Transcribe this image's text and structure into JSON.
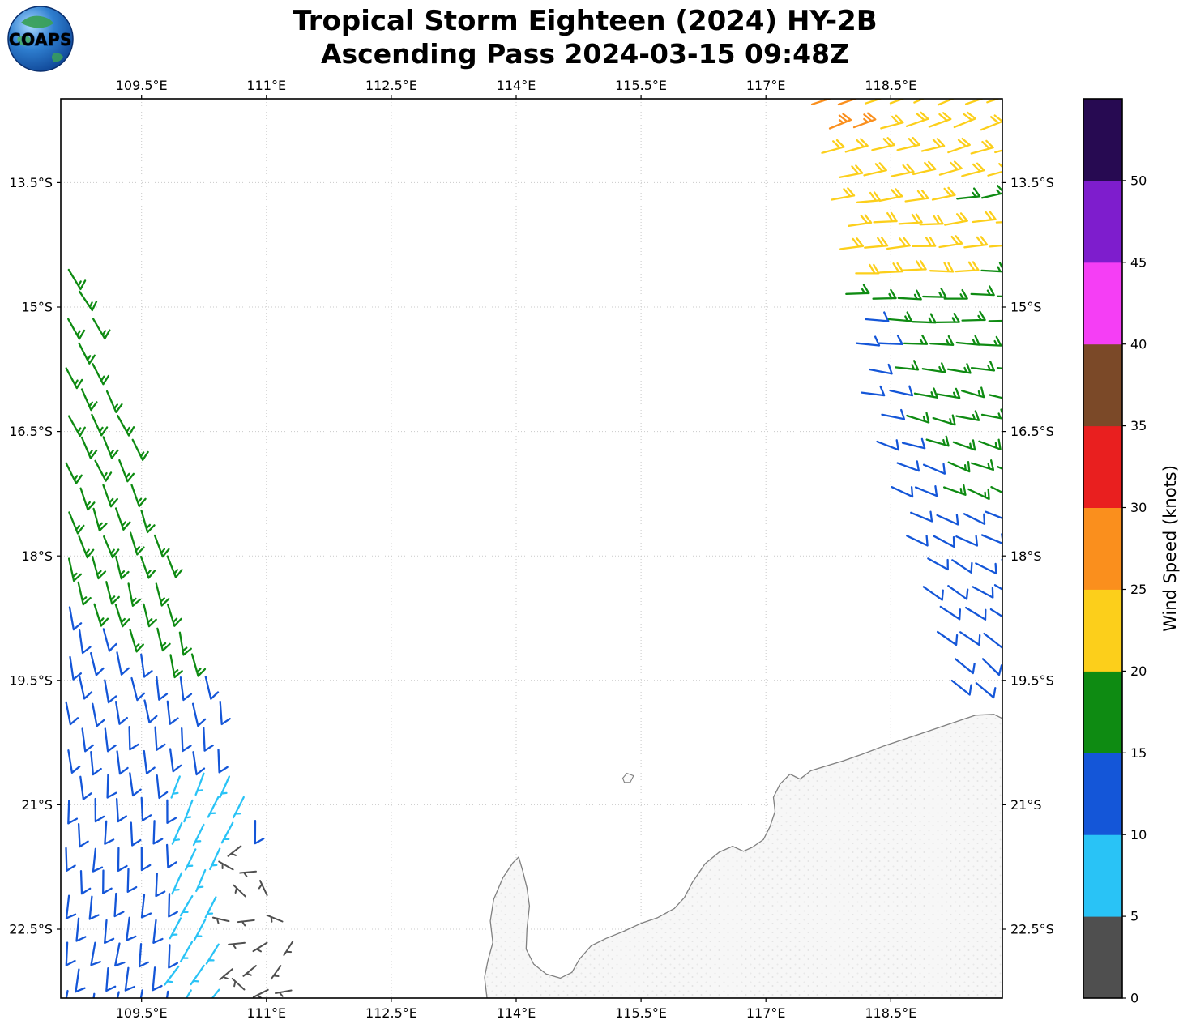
{
  "header": {
    "title_line1": "Tropical Storm Eighteen (2024) HY-2B",
    "title_line2": "Ascending Pass 2024-03-15 09:48Z",
    "logo_text": "COAPS"
  },
  "axes": {
    "lon_min": 108.53,
    "lon_max": 119.84,
    "lat_min": 12.49,
    "lat_max": 23.33,
    "x_ticks": [
      {
        "lon": 109.5,
        "label": "109.5°E"
      },
      {
        "lon": 111.0,
        "label": "111°E"
      },
      {
        "lon": 112.5,
        "label": "112.5°E"
      },
      {
        "lon": 114.0,
        "label": "114°E"
      },
      {
        "lon": 115.5,
        "label": "115.5°E"
      },
      {
        "lon": 117.0,
        "label": "117°E"
      },
      {
        "lon": 118.5,
        "label": "118.5°E"
      }
    ],
    "y_ticks": [
      {
        "lat": 13.5,
        "label": "13.5°S"
      },
      {
        "lat": 15.0,
        "label": "15°S"
      },
      {
        "lat": 16.5,
        "label": "16.5°S"
      },
      {
        "lat": 18.0,
        "label": "18°S"
      },
      {
        "lat": 19.5,
        "label": "19.5°S"
      },
      {
        "lat": 21.0,
        "label": "21°S"
      },
      {
        "lat": 22.5,
        "label": "22.5°S"
      }
    ],
    "grid_color": "#c9c9c9",
    "frame_color": "#000000"
  },
  "colorbar": {
    "label": "Wind Speed (knots)",
    "value_min": 0,
    "value_max": 55,
    "ticks": [
      0,
      5,
      10,
      15,
      20,
      25,
      30,
      35,
      40,
      45,
      50
    ],
    "segments": [
      {
        "from": 0,
        "to": 5,
        "color": "#4f4f4f"
      },
      {
        "from": 5,
        "to": 10,
        "color": "#29c3f6"
      },
      {
        "from": 10,
        "to": 15,
        "color": "#1456d8"
      },
      {
        "from": 15,
        "to": 20,
        "color": "#0e8b12"
      },
      {
        "from": 20,
        "to": 25,
        "color": "#fccf1b"
      },
      {
        "from": 25,
        "to": 30,
        "color": "#fa8f1d"
      },
      {
        "from": 30,
        "to": 35,
        "color": "#e91f1f"
      },
      {
        "from": 35,
        "to": 40,
        "color": "#7b4928"
      },
      {
        "from": 40,
        "to": 45,
        "color": "#f53ef5"
      },
      {
        "from": 45,
        "to": 50,
        "color": "#7e1dcd"
      },
      {
        "from": 50,
        "to": 55,
        "color": "#270a52"
      }
    ]
  },
  "map": {
    "land_fill": "#f7f7f7",
    "coast_color": "#808080",
    "texture_color": "#e2e2e2"
  },
  "chart_data": {
    "type": "wind_barbs_map",
    "instrument": "HY-2B scatterometer",
    "pass_type": "Ascending",
    "valid_time_utc": "2024-03-15 09:48Z",
    "units": "knots",
    "note": "Two satellite swaths of ocean-surface wind barbs; speeds are 5-kt bin values estimated from barb colors, directions are meteorological (from, degrees).",
    "swaths": {
      "west": {
        "lat_start": 14.55,
        "lat_end": 23.3,
        "lat_step": 0.29,
        "lon_first_col": 108.62,
        "col_step": 0.3,
        "right_edge": {
          "lon_at_lat_start": 108.75,
          "dlon_dlat": 0.32,
          "lon_max": 111.32
        },
        "dir_base_deg": 145,
        "dir_dlat": 5.2,
        "zones": {
          "calm_gray": {
            "lat_min": 21.45,
            "lon_min": 110.55,
            "speed_kt": 3
          },
          "cyan": {
            "lat_min": 20.35,
            "lon_min": 109.85,
            "lon_max": 110.78,
            "speed_kt": 7,
            "dir_offset_deg": 25
          },
          "green_over_blue_boundary": {
            "lat_at_ref": 18.55,
            "ref_lon": 108.6,
            "dlat_dlon": 0.53
          },
          "green_speed_kt": 17,
          "blue_speed_kt": 12
        }
      },
      "east": {
        "lat_start": 12.55,
        "lat_end": 19.55,
        "lat_step": 0.29,
        "col_step": 0.3,
        "lon_max": 119.85,
        "left_edge": {
          "lon_at_lat_start": 117.58,
          "dlon_dlat_upper": 0.17,
          "break_lat": 16.0,
          "lon_at_break": 118.17,
          "dlon_dlat_lower": 0.3
        },
        "dir_base_deg": 70,
        "dir_dlat": 9,
        "dir_max_deg": 135,
        "zones": {
          "orange": {
            "lat_max": 13.05,
            "lon_max": 118.15,
            "speed_kt": 27
          },
          "yellow": {
            "lat_max": 14.85,
            "speed_kt": 22
          },
          "green_pockets": [
            {
              "lon_min": 119.0,
              "lat_min": 13.5,
              "lat_max": 13.95
            },
            {
              "lon_min": 119.35,
              "lat_min": 14.45,
              "lat_max": 14.85
            }
          ],
          "upper_green": {
            "lat_max": 16.35,
            "speed_kt": 17
          },
          "left_edge_blue": {
            "lat_min": 15.0,
            "edge_width_deg": 0.32,
            "speed_kt": 12
          },
          "mid_split": {
            "lat_max": 17.35,
            "green_lon_min": 118.95
          },
          "lower_blue_speed_kt": 12
        }
      }
    },
    "coastline_lon_lat": [
      [
        113.65,
        23.33
      ],
      [
        113.62,
        23.08
      ],
      [
        113.66,
        22.88
      ],
      [
        113.72,
        22.66
      ],
      [
        113.69,
        22.4
      ],
      [
        113.73,
        22.14
      ],
      [
        113.84,
        21.88
      ],
      [
        113.96,
        21.7
      ],
      [
        114.03,
        21.63
      ],
      [
        114.08,
        21.8
      ],
      [
        114.13,
        22.0
      ],
      [
        114.16,
        22.22
      ],
      [
        114.13,
        22.5
      ],
      [
        114.12,
        22.74
      ],
      [
        114.21,
        22.92
      ],
      [
        114.36,
        23.04
      ],
      [
        114.53,
        23.09
      ],
      [
        114.67,
        23.02
      ],
      [
        114.76,
        22.86
      ],
      [
        114.9,
        22.7
      ],
      [
        115.08,
        22.61
      ],
      [
        115.28,
        22.53
      ],
      [
        115.5,
        22.43
      ],
      [
        115.7,
        22.36
      ],
      [
        115.9,
        22.25
      ],
      [
        116.02,
        22.12
      ],
      [
        116.12,
        21.93
      ],
      [
        116.27,
        21.71
      ],
      [
        116.44,
        21.57
      ],
      [
        116.6,
        21.5
      ],
      [
        116.73,
        21.56
      ],
      [
        116.84,
        21.51
      ],
      [
        116.97,
        21.42
      ],
      [
        117.05,
        21.26
      ],
      [
        117.11,
        21.08
      ],
      [
        117.09,
        20.91
      ],
      [
        117.17,
        20.75
      ],
      [
        117.29,
        20.63
      ],
      [
        117.41,
        20.69
      ],
      [
        117.54,
        20.59
      ],
      [
        117.7,
        20.54
      ],
      [
        117.93,
        20.47
      ],
      [
        118.16,
        20.39
      ],
      [
        118.42,
        20.29
      ],
      [
        118.66,
        20.21
      ],
      [
        118.93,
        20.12
      ],
      [
        119.22,
        20.02
      ],
      [
        119.52,
        19.92
      ],
      [
        119.74,
        19.91
      ],
      [
        119.84,
        19.96
      ],
      [
        119.84,
        23.33
      ]
    ],
    "island_lon_lat": [
      [
        115.28,
        20.68
      ],
      [
        115.33,
        20.62
      ],
      [
        115.41,
        20.65
      ],
      [
        115.37,
        20.73
      ],
      [
        115.3,
        20.73
      ]
    ]
  }
}
